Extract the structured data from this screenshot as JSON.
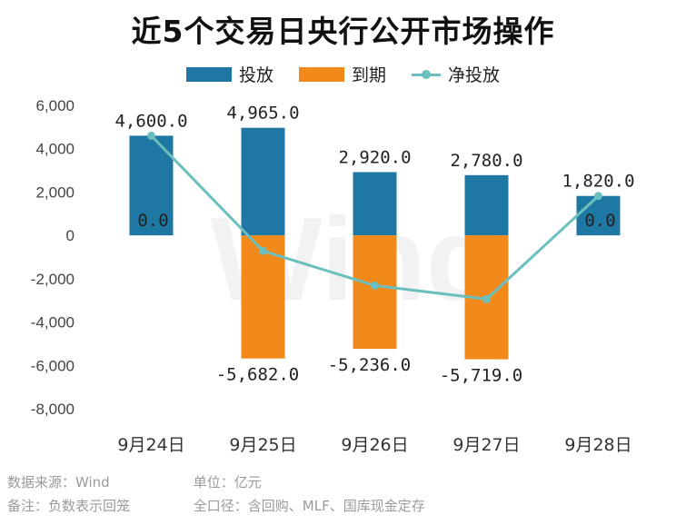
{
  "colors": {
    "investment": "#1f77a4",
    "maturity": "#f28a1b",
    "net": "#6cbfbf",
    "watermark": "#e8e8e8"
  },
  "watermark": "Wind",
  "footer": {
    "source": "数据来源：Wind",
    "unit": "单位：亿元",
    "note": "备注：负数表示回笼",
    "scope": "全口径：含回购、MLF、国库现金定存"
  },
  "chart_data": {
    "type": "bar",
    "title": "近5个交易日央行公开市场操作",
    "categories": [
      "9月24日",
      "9月25日",
      "9月26日",
      "9月27日",
      "9月28日"
    ],
    "series": [
      {
        "name": "投放",
        "type": "bar",
        "values": [
          4600,
          4965,
          2920,
          2780,
          1820
        ],
        "labels": [
          "4,600.0",
          "4,965.0",
          "2,920.0",
          "2,780.0",
          "1,820.0"
        ]
      },
      {
        "name": "到期",
        "type": "bar",
        "values": [
          0,
          -5682,
          -5236,
          -5719,
          0
        ],
        "labels": [
          "0.0",
          "-5,682.0",
          "-5,236.0",
          "-5,719.0",
          "0.0"
        ]
      },
      {
        "name": "净投放",
        "type": "line",
        "values": [
          4600,
          -717,
          -2316,
          -2939,
          1820
        ]
      }
    ],
    "ylim": [
      -8000,
      6000
    ],
    "yticks": [
      -8000,
      -6000,
      -4000,
      -2000,
      0,
      2000,
      4000,
      6000
    ],
    "ytick_labels": [
      "-8,000",
      "-6,000",
      "-4,000",
      "-2,000",
      "0",
      "2,000",
      "4,000",
      "6,000"
    ],
    "stacked": true,
    "grid": false,
    "legend": "top-center"
  }
}
